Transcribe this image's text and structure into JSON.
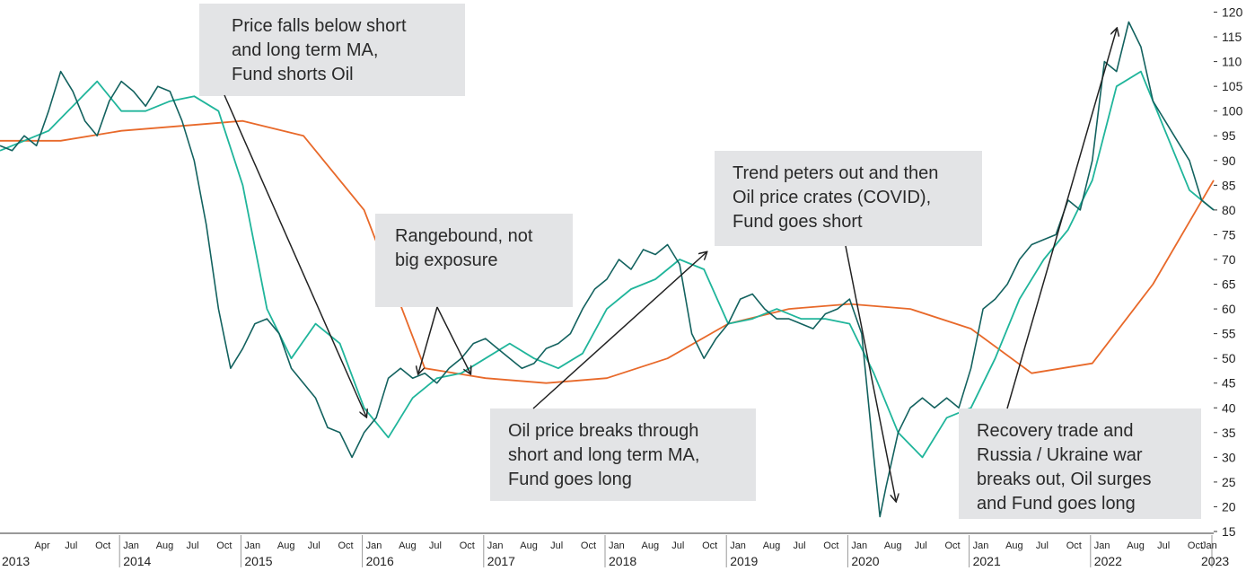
{
  "chart_data": {
    "type": "line",
    "ylim": [
      15,
      121
    ],
    "y_ticks": [
      15,
      20,
      25,
      30,
      35,
      40,
      45,
      50,
      55,
      60,
      65,
      70,
      75,
      80,
      85,
      90,
      95,
      100,
      105,
      110,
      115,
      120
    ],
    "x_range": [
      "2013-01",
      "2023-01"
    ],
    "grid": false,
    "x_axis": {
      "years": [
        "2013",
        "2014",
        "2015",
        "2016",
        "2017",
        "2018",
        "2019",
        "2020",
        "2021",
        "2022",
        "2023"
      ],
      "months": [
        "Jan",
        "Apr",
        "Jul",
        "Oct"
      ],
      "months_alt": [
        "Jan",
        "Aug",
        "Jul",
        "Oct"
      ]
    },
    "colors": {
      "price": "#13625f",
      "short_ma": "#20b59b",
      "long_ma": "#e8692a",
      "annotation_bg": "#e3e4e6"
    },
    "series": [
      {
        "id": "price",
        "x": [
          2013.0,
          2013.1,
          2013.2,
          2013.3,
          2013.4,
          2013.5,
          2013.6,
          2013.7,
          2013.8,
          2013.9,
          2014.0,
          2014.1,
          2014.2,
          2014.3,
          2014.4,
          2014.5,
          2014.6,
          2014.7,
          2014.8,
          2014.9,
          2015.0,
          2015.1,
          2015.2,
          2015.3,
          2015.4,
          2015.5,
          2015.6,
          2015.7,
          2015.8,
          2015.9,
          2016.0,
          2016.1,
          2016.2,
          2016.3,
          2016.4,
          2016.5,
          2016.6,
          2016.7,
          2016.8,
          2016.9,
          2017.0,
          2017.1,
          2017.2,
          2017.3,
          2017.4,
          2017.5,
          2017.6,
          2017.7,
          2017.8,
          2017.9,
          2018.0,
          2018.1,
          2018.2,
          2018.3,
          2018.4,
          2018.5,
          2018.6,
          2018.7,
          2018.8,
          2018.9,
          2019.0,
          2019.1,
          2019.2,
          2019.3,
          2019.4,
          2019.5,
          2019.6,
          2019.7,
          2019.8,
          2019.9,
          2020.0,
          2020.1,
          2020.2,
          2020.25,
          2020.3,
          2020.4,
          2020.5,
          2020.6,
          2020.7,
          2020.8,
          2020.9,
          2021.0,
          2021.1,
          2021.2,
          2021.3,
          2021.4,
          2021.5,
          2021.6,
          2021.7,
          2021.8,
          2021.9,
          2022.0,
          2022.1,
          2022.2,
          2022.3,
          2022.4,
          2022.5,
          2022.6,
          2022.7,
          2022.8,
          2022.9,
          2023.0
        ],
        "values": [
          93,
          92,
          95,
          93,
          100,
          108,
          104,
          98,
          95,
          102,
          106,
          104,
          101,
          105,
          104,
          98,
          90,
          77,
          60,
          48,
          52,
          57,
          58,
          55,
          48,
          45,
          42,
          36,
          35,
          30,
          35,
          38,
          46,
          48,
          46,
          47,
          45,
          48,
          50,
          53,
          54,
          52,
          50,
          48,
          49,
          52,
          53,
          55,
          60,
          64,
          66,
          70,
          68,
          72,
          71,
          73,
          69,
          55,
          50,
          54,
          57,
          62,
          63,
          60,
          58,
          58,
          57,
          56,
          59,
          60,
          62,
          55,
          30,
          18,
          24,
          35,
          40,
          42,
          40,
          42,
          40,
          48,
          60,
          62,
          65,
          70,
          73,
          74,
          75,
          82,
          80,
          90,
          110,
          108,
          118,
          113,
          102,
          98,
          94,
          90,
          82,
          80
        ]
      },
      {
        "id": "short_ma",
        "x": [
          2013.0,
          2013.2,
          2013.4,
          2013.6,
          2013.8,
          2014.0,
          2014.2,
          2014.4,
          2014.6,
          2014.8,
          2015.0,
          2015.2,
          2015.4,
          2015.6,
          2015.8,
          2016.0,
          2016.2,
          2016.4,
          2016.6,
          2016.8,
          2017.0,
          2017.2,
          2017.4,
          2017.6,
          2017.8,
          2018.0,
          2018.2,
          2018.4,
          2018.6,
          2018.8,
          2019.0,
          2019.2,
          2019.4,
          2019.6,
          2019.8,
          2020.0,
          2020.2,
          2020.4,
          2020.6,
          2020.8,
          2021.0,
          2021.2,
          2021.4,
          2021.6,
          2021.8,
          2022.0,
          2022.2,
          2022.4,
          2022.6,
          2022.8,
          2023.0
        ],
        "values": [
          92,
          94,
          96,
          101,
          106,
          100,
          100,
          102,
          103,
          100,
          85,
          60,
          50,
          57,
          53,
          40,
          34,
          42,
          46,
          47,
          50,
          53,
          50,
          48,
          51,
          60,
          64,
          66,
          70,
          68,
          57,
          58,
          60,
          58,
          58,
          57,
          47,
          35,
          30,
          38,
          40,
          50,
          62,
          70,
          76,
          86,
          105,
          108,
          96,
          84,
          80
        ]
      },
      {
        "id": "long_ma",
        "x": [
          2013.0,
          2013.5,
          2014.0,
          2014.5,
          2015.0,
          2015.5,
          2016.0,
          2016.5,
          2017.0,
          2017.5,
          2018.0,
          2018.5,
          2019.0,
          2019.5,
          2020.0,
          2020.5,
          2021.0,
          2021.5,
          2022.0,
          2022.5,
          2023.0
        ],
        "values": [
          94,
          94,
          96,
          97,
          98,
          95,
          80,
          48,
          46,
          45,
          46,
          50,
          57,
          60,
          61,
          60,
          56,
          47,
          49,
          65,
          86
        ]
      }
    ]
  },
  "annotations": [
    {
      "id": "a1",
      "lines": [
        "Price falls below short",
        "and long term MA,",
        "Fund shorts Oil"
      ]
    },
    {
      "id": "a2",
      "lines": [
        "Rangebound, not",
        "big exposure"
      ]
    },
    {
      "id": "a3",
      "lines": [
        "Oil price breaks through",
        "short and long term MA,",
        "Fund goes long"
      ]
    },
    {
      "id": "a4",
      "lines": [
        "Trend peters out and then",
        "Oil price crates (COVID),",
        "Fund goes short"
      ]
    },
    {
      "id": "a5",
      "lines": [
        "Recovery trade and",
        "Russia / Ukraine war",
        "breaks out, Oil surges",
        "and Fund goes long"
      ]
    }
  ]
}
